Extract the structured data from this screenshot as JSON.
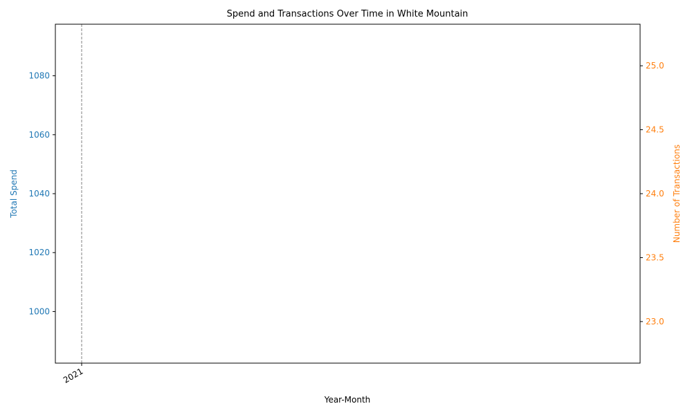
{
  "chart_data": {
    "type": "line",
    "title": "Spend and Transactions Over Time in White Mountain",
    "xlabel": "Year-Month",
    "x_tick_labels": [
      "2021"
    ],
    "left_axis": {
      "label": "Total Spend",
      "color": "#1f77b4",
      "ylim": [
        982.5,
        1097.5
      ],
      "ticks": [
        1000,
        1020,
        1040,
        1060,
        1080
      ]
    },
    "right_axis": {
      "label": "Number of Transactions",
      "color": "#ff7f0e",
      "ylim": [
        22.675,
        25.325
      ],
      "ticks": [
        "23.0",
        "23.5",
        "24.0",
        "24.5",
        "25.0"
      ]
    },
    "annotations": [
      {
        "type": "vertical-dashed-line",
        "x": "2021",
        "color": "#808080"
      }
    ],
    "grid": false,
    "legend": "none"
  }
}
